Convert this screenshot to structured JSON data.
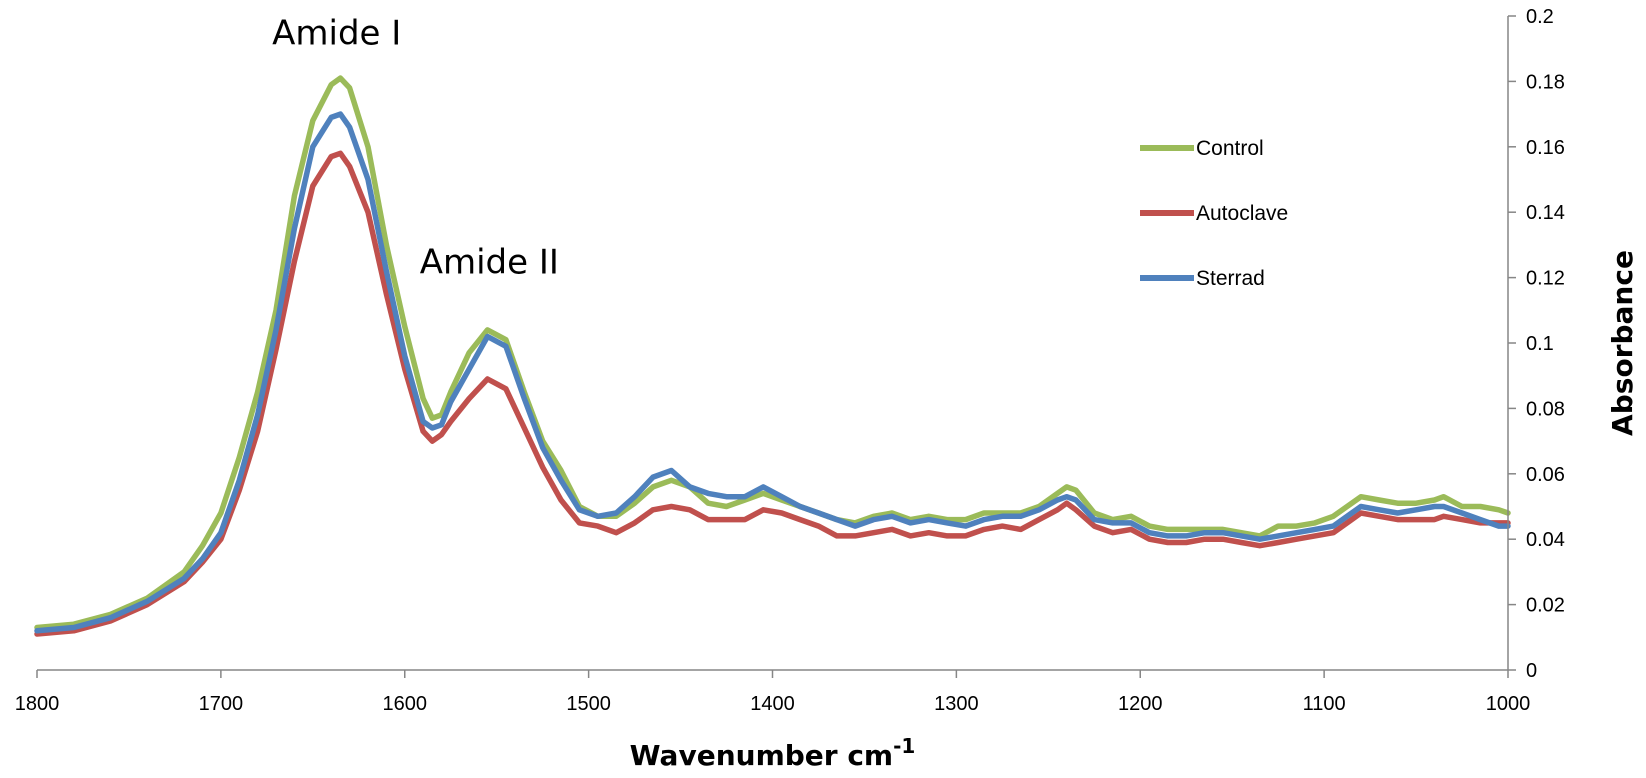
{
  "chart_data": {
    "type": "line",
    "xlabel": "Wavenumber cm",
    "xlabel_superscript": "-1",
    "ylabel": "Absorbance",
    "xlim": [
      1800,
      1000
    ],
    "x_reversed": true,
    "ylim": [
      0,
      0.2
    ],
    "y_axis_side": "right",
    "grid": false,
    "legend": "right, upper-middle",
    "x_ticks": [
      "1800",
      "1700",
      "1600",
      "1500",
      "1400",
      "1300",
      "1200",
      "1100",
      "1000"
    ],
    "y_ticks": [
      "0",
      "0.02",
      "0.04",
      "0.06",
      "0.08",
      "0.1",
      "0.12",
      "0.14",
      "0.16",
      "0.18",
      "0.2"
    ],
    "annotations": [
      {
        "text": "Amide I",
        "x": 1637,
        "y": 0.195
      },
      {
        "text": "Amide II",
        "x": 1554,
        "y": 0.125
      }
    ],
    "series": [
      {
        "name": "Control",
        "color": "#9bbb59",
        "points": [
          [
            1800,
            0.013
          ],
          [
            1780,
            0.014
          ],
          [
            1760,
            0.017
          ],
          [
            1740,
            0.022
          ],
          [
            1720,
            0.03
          ],
          [
            1710,
            0.038
          ],
          [
            1700,
            0.048
          ],
          [
            1690,
            0.065
          ],
          [
            1680,
            0.085
          ],
          [
            1670,
            0.11
          ],
          [
            1660,
            0.145
          ],
          [
            1650,
            0.168
          ],
          [
            1640,
            0.179
          ],
          [
            1635,
            0.181
          ],
          [
            1630,
            0.178
          ],
          [
            1620,
            0.16
          ],
          [
            1610,
            0.13
          ],
          [
            1600,
            0.105
          ],
          [
            1590,
            0.083
          ],
          [
            1585,
            0.077
          ],
          [
            1580,
            0.078
          ],
          [
            1575,
            0.085
          ],
          [
            1565,
            0.097
          ],
          [
            1555,
            0.104
          ],
          [
            1545,
            0.101
          ],
          [
            1535,
            0.085
          ],
          [
            1525,
            0.07
          ],
          [
            1515,
            0.061
          ],
          [
            1505,
            0.05
          ],
          [
            1495,
            0.047
          ],
          [
            1485,
            0.047
          ],
          [
            1475,
            0.051
          ],
          [
            1465,
            0.056
          ],
          [
            1455,
            0.058
          ],
          [
            1445,
            0.056
          ],
          [
            1435,
            0.051
          ],
          [
            1425,
            0.05
          ],
          [
            1415,
            0.052
          ],
          [
            1405,
            0.054
          ],
          [
            1395,
            0.052
          ],
          [
            1385,
            0.05
          ],
          [
            1375,
            0.048
          ],
          [
            1365,
            0.046
          ],
          [
            1355,
            0.045
          ],
          [
            1345,
            0.047
          ],
          [
            1335,
            0.048
          ],
          [
            1325,
            0.046
          ],
          [
            1315,
            0.047
          ],
          [
            1305,
            0.046
          ],
          [
            1295,
            0.046
          ],
          [
            1285,
            0.048
          ],
          [
            1275,
            0.048
          ],
          [
            1265,
            0.048
          ],
          [
            1255,
            0.05
          ],
          [
            1245,
            0.054
          ],
          [
            1240,
            0.056
          ],
          [
            1235,
            0.055
          ],
          [
            1225,
            0.048
          ],
          [
            1215,
            0.046
          ],
          [
            1205,
            0.047
          ],
          [
            1195,
            0.044
          ],
          [
            1185,
            0.043
          ],
          [
            1175,
            0.043
          ],
          [
            1165,
            0.043
          ],
          [
            1155,
            0.043
          ],
          [
            1145,
            0.042
          ],
          [
            1135,
            0.041
          ],
          [
            1125,
            0.044
          ],
          [
            1115,
            0.044
          ],
          [
            1105,
            0.045
          ],
          [
            1095,
            0.047
          ],
          [
            1085,
            0.051
          ],
          [
            1080,
            0.053
          ],
          [
            1070,
            0.052
          ],
          [
            1060,
            0.051
          ],
          [
            1050,
            0.051
          ],
          [
            1040,
            0.052
          ],
          [
            1035,
            0.053
          ],
          [
            1025,
            0.05
          ],
          [
            1015,
            0.05
          ],
          [
            1005,
            0.049
          ],
          [
            1000,
            0.048
          ]
        ]
      },
      {
        "name": "Autoclave",
        "color": "#c0504d",
        "points": [
          [
            1800,
            0.011
          ],
          [
            1780,
            0.012
          ],
          [
            1760,
            0.015
          ],
          [
            1740,
            0.02
          ],
          [
            1720,
            0.027
          ],
          [
            1710,
            0.033
          ],
          [
            1700,
            0.04
          ],
          [
            1690,
            0.055
          ],
          [
            1680,
            0.073
          ],
          [
            1670,
            0.098
          ],
          [
            1660,
            0.125
          ],
          [
            1650,
            0.148
          ],
          [
            1640,
            0.157
          ],
          [
            1635,
            0.158
          ],
          [
            1630,
            0.154
          ],
          [
            1620,
            0.14
          ],
          [
            1610,
            0.115
          ],
          [
            1600,
            0.092
          ],
          [
            1590,
            0.073
          ],
          [
            1585,
            0.07
          ],
          [
            1580,
            0.072
          ],
          [
            1575,
            0.076
          ],
          [
            1565,
            0.083
          ],
          [
            1555,
            0.089
          ],
          [
            1545,
            0.086
          ],
          [
            1535,
            0.074
          ],
          [
            1525,
            0.062
          ],
          [
            1515,
            0.052
          ],
          [
            1505,
            0.045
          ],
          [
            1495,
            0.044
          ],
          [
            1485,
            0.042
          ],
          [
            1475,
            0.045
          ],
          [
            1465,
            0.049
          ],
          [
            1455,
            0.05
          ],
          [
            1445,
            0.049
          ],
          [
            1435,
            0.046
          ],
          [
            1425,
            0.046
          ],
          [
            1415,
            0.046
          ],
          [
            1405,
            0.049
          ],
          [
            1395,
            0.048
          ],
          [
            1385,
            0.046
          ],
          [
            1375,
            0.044
          ],
          [
            1365,
            0.041
          ],
          [
            1355,
            0.041
          ],
          [
            1345,
            0.042
          ],
          [
            1335,
            0.043
          ],
          [
            1325,
            0.041
          ],
          [
            1315,
            0.042
          ],
          [
            1305,
            0.041
          ],
          [
            1295,
            0.041
          ],
          [
            1285,
            0.043
          ],
          [
            1275,
            0.044
          ],
          [
            1265,
            0.043
          ],
          [
            1255,
            0.046
          ],
          [
            1245,
            0.049
          ],
          [
            1240,
            0.051
          ],
          [
            1235,
            0.049
          ],
          [
            1225,
            0.044
          ],
          [
            1215,
            0.042
          ],
          [
            1205,
            0.043
          ],
          [
            1195,
            0.04
          ],
          [
            1185,
            0.039
          ],
          [
            1175,
            0.039
          ],
          [
            1165,
            0.04
          ],
          [
            1155,
            0.04
          ],
          [
            1145,
            0.039
          ],
          [
            1135,
            0.038
          ],
          [
            1125,
            0.039
          ],
          [
            1115,
            0.04
          ],
          [
            1105,
            0.041
          ],
          [
            1095,
            0.042
          ],
          [
            1085,
            0.046
          ],
          [
            1080,
            0.048
          ],
          [
            1070,
            0.047
          ],
          [
            1060,
            0.046
          ],
          [
            1050,
            0.046
          ],
          [
            1040,
            0.046
          ],
          [
            1035,
            0.047
          ],
          [
            1025,
            0.046
          ],
          [
            1015,
            0.045
          ],
          [
            1005,
            0.045
          ],
          [
            1000,
            0.045
          ]
        ]
      },
      {
        "name": "Sterrad",
        "color": "#4f81bd",
        "points": [
          [
            1800,
            0.012
          ],
          [
            1780,
            0.013
          ],
          [
            1760,
            0.016
          ],
          [
            1740,
            0.021
          ],
          [
            1720,
            0.028
          ],
          [
            1710,
            0.034
          ],
          [
            1700,
            0.042
          ],
          [
            1690,
            0.058
          ],
          [
            1680,
            0.078
          ],
          [
            1670,
            0.104
          ],
          [
            1660,
            0.135
          ],
          [
            1650,
            0.16
          ],
          [
            1640,
            0.169
          ],
          [
            1635,
            0.17
          ],
          [
            1630,
            0.166
          ],
          [
            1620,
            0.15
          ],
          [
            1610,
            0.122
          ],
          [
            1600,
            0.096
          ],
          [
            1590,
            0.076
          ],
          [
            1585,
            0.074
          ],
          [
            1580,
            0.075
          ],
          [
            1575,
            0.082
          ],
          [
            1565,
            0.092
          ],
          [
            1555,
            0.102
          ],
          [
            1545,
            0.099
          ],
          [
            1535,
            0.083
          ],
          [
            1525,
            0.068
          ],
          [
            1515,
            0.058
          ],
          [
            1505,
            0.049
          ],
          [
            1495,
            0.047
          ],
          [
            1485,
            0.048
          ],
          [
            1475,
            0.053
          ],
          [
            1465,
            0.059
          ],
          [
            1455,
            0.061
          ],
          [
            1445,
            0.056
          ],
          [
            1435,
            0.054
          ],
          [
            1425,
            0.053
          ],
          [
            1415,
            0.053
          ],
          [
            1405,
            0.056
          ],
          [
            1395,
            0.053
          ],
          [
            1385,
            0.05
          ],
          [
            1375,
            0.048
          ],
          [
            1365,
            0.046
          ],
          [
            1355,
            0.044
          ],
          [
            1345,
            0.046
          ],
          [
            1335,
            0.047
          ],
          [
            1325,
            0.045
          ],
          [
            1315,
            0.046
          ],
          [
            1305,
            0.045
          ],
          [
            1295,
            0.044
          ],
          [
            1285,
            0.046
          ],
          [
            1275,
            0.047
          ],
          [
            1265,
            0.047
          ],
          [
            1255,
            0.049
          ],
          [
            1245,
            0.052
          ],
          [
            1240,
            0.053
          ],
          [
            1235,
            0.052
          ],
          [
            1225,
            0.046
          ],
          [
            1215,
            0.045
          ],
          [
            1205,
            0.045
          ],
          [
            1195,
            0.042
          ],
          [
            1185,
            0.041
          ],
          [
            1175,
            0.041
          ],
          [
            1165,
            0.042
          ],
          [
            1155,
            0.042
          ],
          [
            1145,
            0.041
          ],
          [
            1135,
            0.04
          ],
          [
            1125,
            0.041
          ],
          [
            1115,
            0.042
          ],
          [
            1105,
            0.043
          ],
          [
            1095,
            0.044
          ],
          [
            1085,
            0.048
          ],
          [
            1080,
            0.05
          ],
          [
            1070,
            0.049
          ],
          [
            1060,
            0.048
          ],
          [
            1050,
            0.049
          ],
          [
            1040,
            0.05
          ],
          [
            1035,
            0.05
          ],
          [
            1025,
            0.048
          ],
          [
            1015,
            0.046
          ],
          [
            1005,
            0.044
          ],
          [
            1000,
            0.044
          ]
        ]
      }
    ]
  }
}
